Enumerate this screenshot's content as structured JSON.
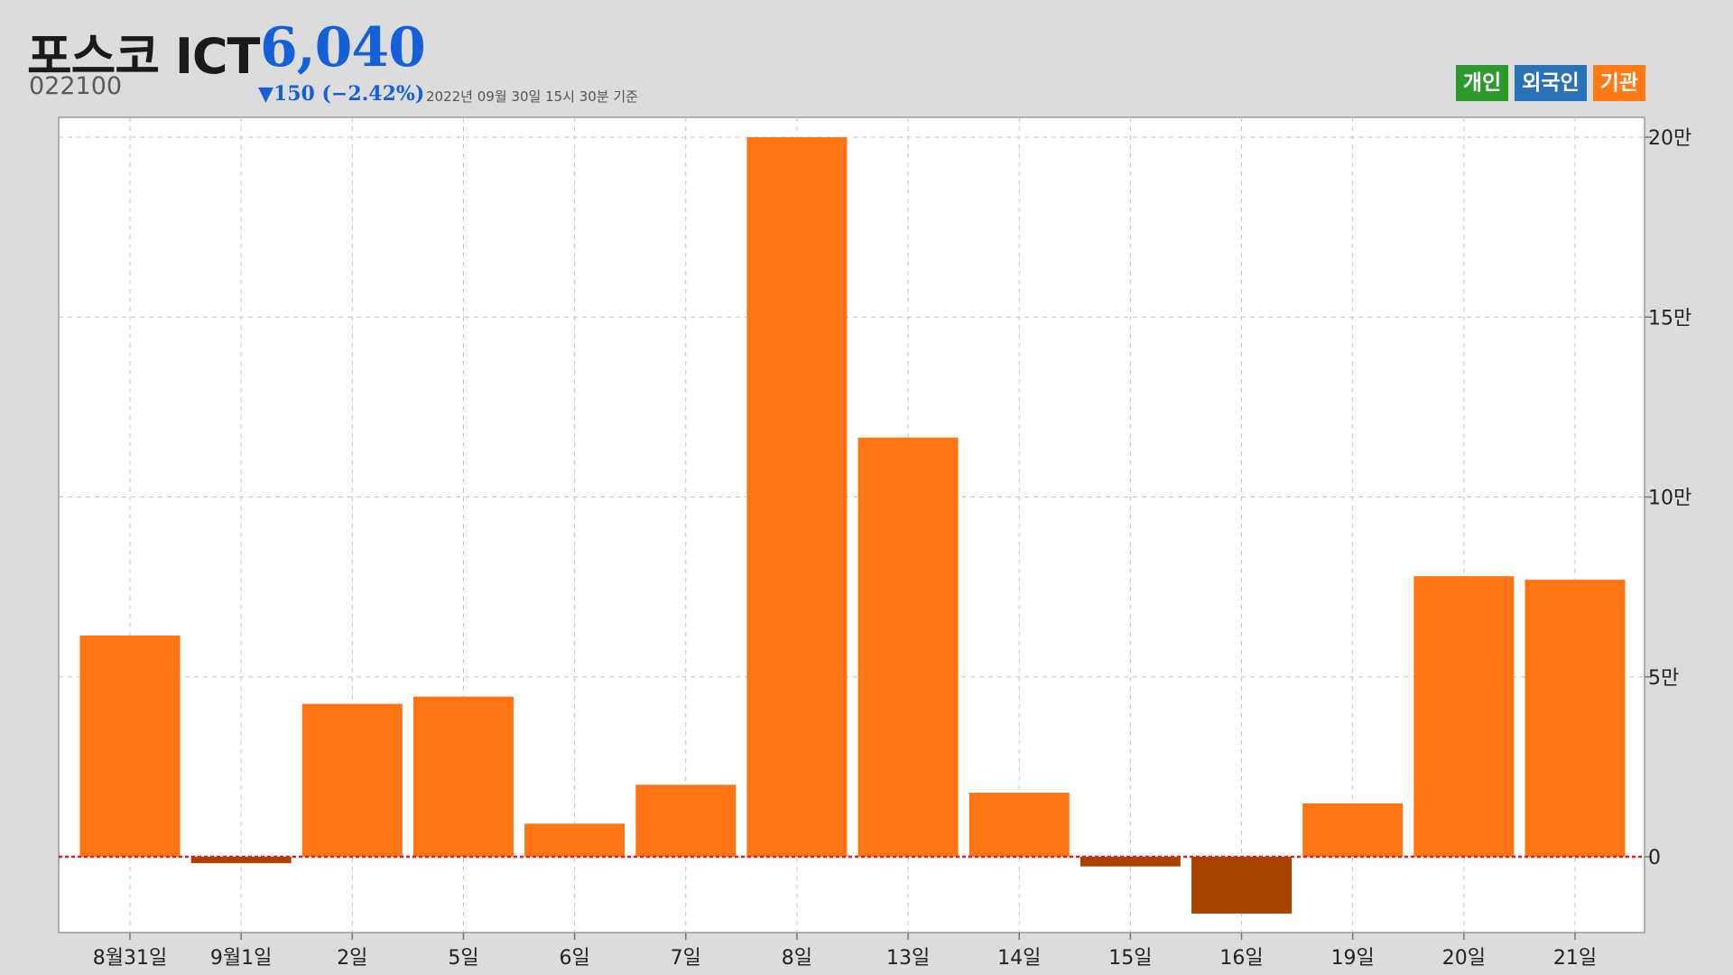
{
  "header": {
    "title": "포스코 ICT",
    "price": "6,040",
    "code": "022100",
    "change": "▼150 (−2.42%)",
    "as_of": "2022년 09월 30일 15시 30분 기준"
  },
  "legend": {
    "items": [
      {
        "label": "개인",
        "color": "#2e9a2e"
      },
      {
        "label": "외국인",
        "color": "#2a72b8"
      },
      {
        "label": "기관",
        "color": "#ff7a14"
      }
    ]
  },
  "chart_data": {
    "type": "bar",
    "categories": [
      "8월31일",
      "9월1일",
      "2일",
      "5일",
      "6일",
      "7일",
      "8일",
      "13일",
      "14일",
      "15일",
      "16일",
      "19일",
      "20일",
      "21일"
    ],
    "series": [
      {
        "name": "기관",
        "values": [
          61500,
          -1800,
          42500,
          44500,
          9200,
          20000,
          200000,
          116500,
          17800,
          -2700,
          -15800,
          14800,
          78000,
          77000
        ]
      }
    ],
    "y_ticks": [
      0,
      50000,
      100000,
      150000,
      200000
    ],
    "y_tick_labels": [
      "0",
      "5만",
      "10만",
      "15만",
      "20만"
    ],
    "ylim": [
      -20800,
      200000
    ],
    "colors": {
      "positive": "#ff7513",
      "negative": "#a84300",
      "zero_line": "#e02020",
      "grid": "#c4c4c4"
    },
    "grid": true,
    "y_axis_side": "right"
  }
}
